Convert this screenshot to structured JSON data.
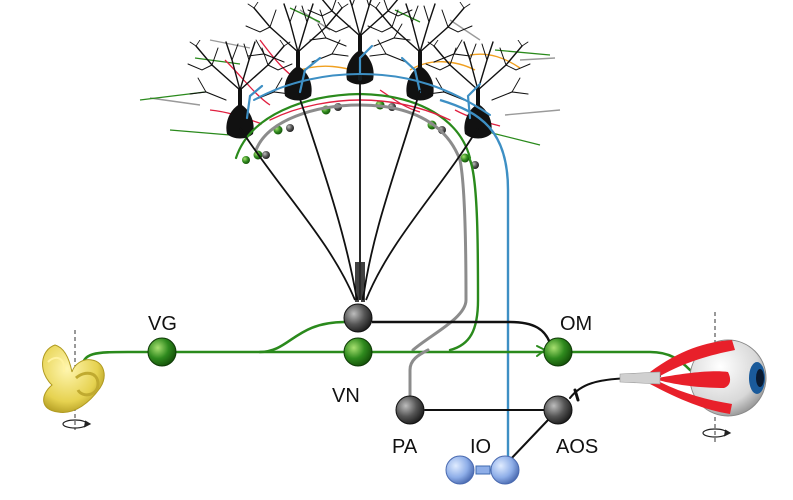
{
  "labels": {
    "vg": "VG",
    "om": "OM",
    "vn": "VN",
    "pa": "PA",
    "io": "IO",
    "aos": "AOS"
  },
  "colors": {
    "mossy_fiber": "#2a8a1c",
    "climbing_fiber": "#3d8fc4",
    "purkinje_axon": "#111111",
    "pathway_gray": "#8c8c8c",
    "parallel_fiber_orange": "#f0a020",
    "red_dendrite": "#e02040",
    "inner_ear": "#e8d860",
    "eye_muscle": "#e8202a",
    "iris": "#1a5a9a",
    "inferior_olive": "#8eaee8"
  },
  "icons": [
    "inner-ear-icon",
    "eye-icon",
    "rotation-arrow-icon"
  ]
}
